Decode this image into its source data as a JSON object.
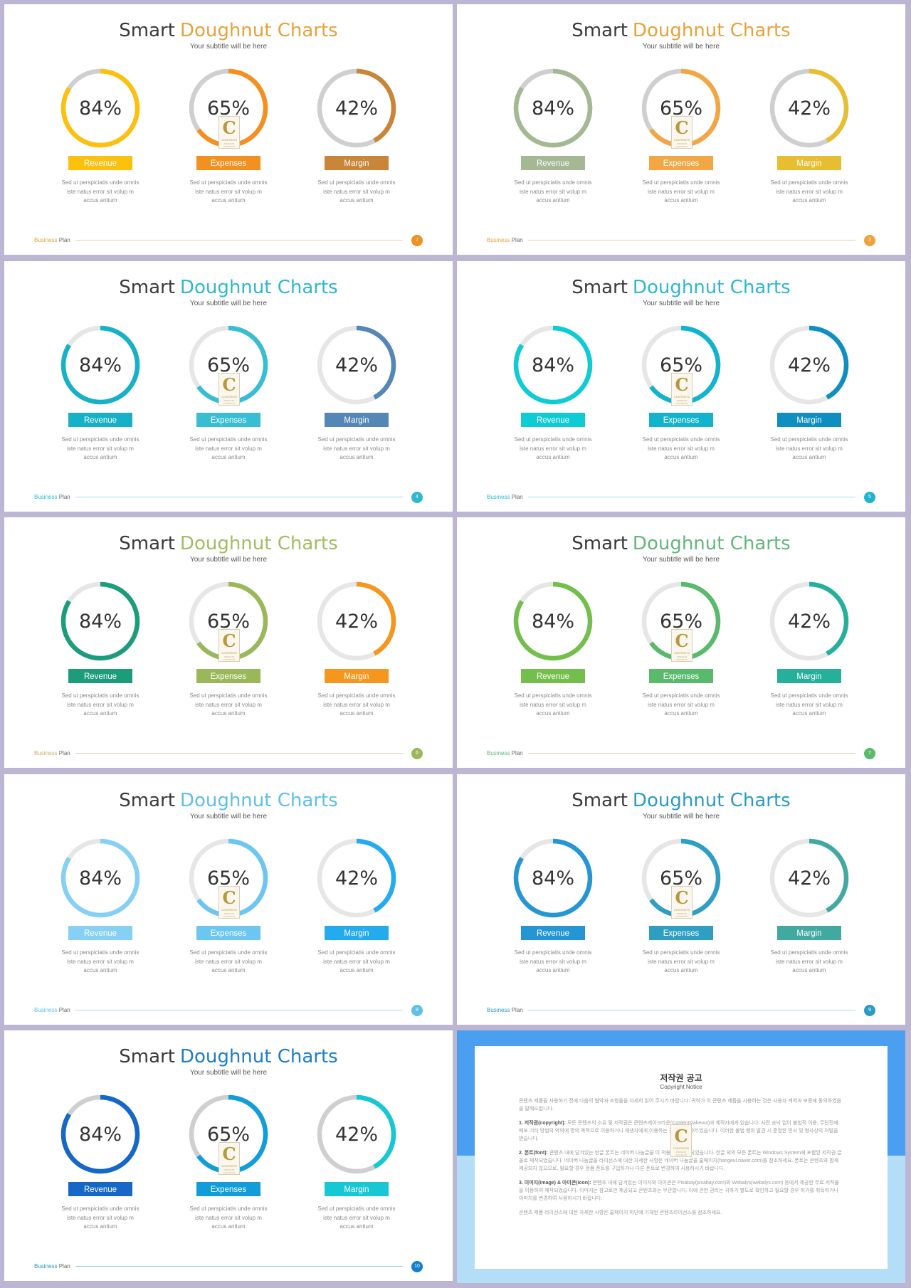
{
  "chart_data": [
    {
      "type": "pie",
      "title_lead": "Smart",
      "title_highlight": "Doughnut Charts",
      "subtitle": "Your subtitle will be here",
      "accent": "#e8a23a",
      "track": "#cfcfcf",
      "segments": [
        {
          "label": "Revenue",
          "value": 84,
          "display": "84%",
          "color": "#fcc10f"
        },
        {
          "label": "Expenses",
          "value": 65,
          "display": "65%",
          "color": "#f4901f"
        },
        {
          "label": "Margin",
          "value": 42,
          "display": "42%",
          "color": "#c98538"
        }
      ],
      "footer": {
        "brand_a": "Business",
        "brand_b": "Plan",
        "page": "2",
        "badge": "#f0901d",
        "line": "#e4d3a8",
        "brand_color": "#e8a23a"
      }
    },
    {
      "type": "pie",
      "title_lead": "Smart",
      "title_highlight": "Doughnut Charts",
      "subtitle": "Your subtitle will be here",
      "accent": "#e8a23a",
      "track": "#cfcfcf",
      "segments": [
        {
          "label": "Revenue",
          "value": 84,
          "display": "84%",
          "color": "#a3b893"
        },
        {
          "label": "Expenses",
          "value": 65,
          "display": "65%",
          "color": "#f2a744"
        },
        {
          "label": "Margin",
          "value": 42,
          "display": "42%",
          "color": "#e7bd31"
        }
      ],
      "footer": {
        "brand_a": "Business",
        "brand_b": "Plan",
        "page": "3",
        "badge": "#f0a23a",
        "line": "#e4d3a8",
        "brand_color": "#e8a23a"
      }
    },
    {
      "type": "pie",
      "title_lead": "Smart",
      "title_highlight": "Doughnut Charts",
      "subtitle": "Your subtitle will be here",
      "accent": "#2db8cf",
      "track": "#e6e6e6",
      "segments": [
        {
          "label": "Revenue",
          "value": 84,
          "display": "84%",
          "color": "#16b1c6"
        },
        {
          "label": "Expenses",
          "value": 65,
          "display": "65%",
          "color": "#39bdd2"
        },
        {
          "label": "Margin",
          "value": 42,
          "display": "42%",
          "color": "#5587b6"
        }
      ],
      "footer": {
        "brand_a": "Business",
        "brand_b": "Plan",
        "page": "4",
        "badge": "#2db8cf",
        "line": "#a9dbe6",
        "brand_color": "#2db8cf"
      }
    },
    {
      "type": "pie",
      "title_lead": "Smart",
      "title_highlight": "Doughnut Charts",
      "subtitle": "Your subtitle will be here",
      "accent": "#2db8cf",
      "track": "#e6e6e6",
      "segments": [
        {
          "label": "Revenue",
          "value": 84,
          "display": "84%",
          "color": "#0fcbd4"
        },
        {
          "label": "Expenses",
          "value": 65,
          "display": "65%",
          "color": "#12b3cc"
        },
        {
          "label": "Margin",
          "value": 42,
          "display": "42%",
          "color": "#0f8ec0"
        }
      ],
      "footer": {
        "brand_a": "Business",
        "brand_b": "Plan",
        "page": "5",
        "badge": "#1fb3cf",
        "line": "#a9dbe6",
        "brand_color": "#2db8cf"
      }
    },
    {
      "type": "pie",
      "title_lead": "Smart",
      "title_highlight": "Doughnut Charts",
      "subtitle": "Your subtitle will be here",
      "accent": "#a3bd62",
      "track": "#e6e6e6",
      "segments": [
        {
          "label": "Revenue",
          "value": 84,
          "display": "84%",
          "color": "#1d9c7c"
        },
        {
          "label": "Expenses",
          "value": 65,
          "display": "65%",
          "color": "#9ab85a"
        },
        {
          "label": "Margin",
          "value": 42,
          "display": "42%",
          "color": "#f5961f"
        }
      ],
      "footer": {
        "brand_a": "Business",
        "brand_b": "Plan",
        "page": "6",
        "badge": "#9ab85a",
        "line": "#dccfa8",
        "brand_color": "#c9b36a"
      }
    },
    {
      "type": "pie",
      "title_lead": "Smart",
      "title_highlight": "Doughnut Charts",
      "subtitle": "Your subtitle will be here",
      "accent": "#63b77b",
      "track": "#e6e6e6",
      "segments": [
        {
          "label": "Revenue",
          "value": 84,
          "display": "84%",
          "color": "#74bf4c"
        },
        {
          "label": "Expenses",
          "value": 65,
          "display": "65%",
          "color": "#5aba6c"
        },
        {
          "label": "Margin",
          "value": 42,
          "display": "42%",
          "color": "#24b09b"
        }
      ],
      "footer": {
        "brand_a": "Business",
        "brand_b": "Plan",
        "page": "7",
        "badge": "#5aba6c",
        "line": "#dccfa8",
        "brand_color": "#63b77b"
      }
    },
    {
      "type": "pie",
      "title_lead": "Smart",
      "title_highlight": "Doughnut Charts",
      "subtitle": "Your subtitle will be here",
      "accent": "#5dc0ea",
      "track": "#e6e6e6",
      "segments": [
        {
          "label": "Revenue",
          "value": 84,
          "display": "84%",
          "color": "#86d0f4"
        },
        {
          "label": "Expenses",
          "value": 65,
          "display": "65%",
          "color": "#6cc6f0"
        },
        {
          "label": "Margin",
          "value": 42,
          "display": "42%",
          "color": "#23abee"
        }
      ],
      "footer": {
        "brand_a": "Business",
        "brand_b": "Plan",
        "page": "8",
        "badge": "#5dc0ea",
        "line": "#a9dbe6",
        "brand_color": "#5dc0ea"
      }
    },
    {
      "type": "pie",
      "title_lead": "Smart",
      "title_highlight": "Doughnut Charts",
      "subtitle": "Your subtitle will be here",
      "accent": "#2b9bc4",
      "track": "#e6e6e6",
      "segments": [
        {
          "label": "Revenue",
          "value": 84,
          "display": "84%",
          "color": "#2596d3"
        },
        {
          "label": "Expenses",
          "value": 65,
          "display": "65%",
          "color": "#2e9fc3"
        },
        {
          "label": "Margin",
          "value": 42,
          "display": "42%",
          "color": "#41a9a0"
        }
      ],
      "footer": {
        "brand_a": "Business",
        "brand_b": "Plan",
        "page": "9",
        "badge": "#2b9bc4",
        "line": "#a9dbe6",
        "brand_color": "#2b9bc4"
      }
    },
    {
      "type": "pie",
      "title_lead": "Smart",
      "title_highlight": "Doughnut Charts",
      "subtitle": "Your subtitle will be here",
      "accent": "#1c7ec8",
      "track": "#cfcfcf",
      "segments": [
        {
          "label": "Revenue",
          "value": 84,
          "display": "84%",
          "color": "#1568c5"
        },
        {
          "label": "Expenses",
          "value": 65,
          "display": "65%",
          "color": "#109dd8"
        },
        {
          "label": "Margin",
          "value": 42,
          "display": "42%",
          "color": "#17c7d3"
        }
      ],
      "footer": {
        "brand_a": "Business",
        "brand_b": "Plan",
        "page": "10",
        "badge": "#137ed0",
        "line": "#8fc6ea",
        "brand_color": "#2b9bc4"
      }
    }
  ],
  "description_lines": [
    "Sed ut perspiciatis unde omnis",
    "iste natus error sit volup m",
    "accus antium"
  ],
  "logo": {
    "letter": "C",
    "name": "CONTENTS",
    "tag": "PREMIUM CONTENTS"
  },
  "copyright": {
    "title": "저작권 공고",
    "subtitle": "Copyright Notice",
    "intro": "콘텐츠 제품을 사용하기 전에 다음의 협약과 조항들을 자세히 읽어 주시기 바랍니다. 귀하가 이 콘텐츠 제품을 사용하는 것은 사용자 계약과 보증에 동의하였음을 말해드립니다.",
    "s1_head": "1. 저작권(copyright):",
    "s1_body": "모든 콘텐츠의 소유 및 저작권은 콘텐츠레이크라운(Contentslakeout)과 제작자에게 있습니다. 사전 승낙 없이 불법적 이용, 무단전재, 배포 기타 방법의 악의에 명의 목적으로 이용하거나 재생자에게 이용하는 것은 금지되어 있습니다. 이러한 불법 행위 발견 시 준엄한 민사 및 형사상의 처벌을 받습니다.",
    "s2_head": "2. 폰트(font):",
    "s2_body": "콘텐츠 내에 담겨있는 한글 폰트는 네이버 나눔글꼴 이 적용되어 제작되었습니다. 한글 외의 모든 폰트는 Windows System에 포함된 저작권 글꼴로 제작되었습니다. 네이버 나눔글꼴 라이선스에 대한 자세한 사항은 네이버 나눔글꼴 홈페이지(hangeul.naver.com)를 참조하세요. 폰트는 콘텐츠와 함께 제공되지 않으므로, 필요할 경우 정품 폰트를 구입하거나 다른 폰트로 변경하여 사용하시기 바랍니다.",
    "s3_head": "3. 이미지(image) & 아이콘(icon):",
    "s3_body": "콘텐츠 내에 담겨있는 이미지와 아이콘은 Pixabay(pixabay.com)와 Webalys(webalys.com) 등에서 제공한 무료 저작물을 이용하여 제작되었습니다. 이미지는 참고로만 제공되고 콘텐츠와는 무관합니다. 이에 관한 권리는 귀하가 별도로 확인하고 필요할 경우 허가를 취득하거나 이미지를 변경하여 사용하시기 바랍니다.",
    "outro": "콘텐츠 제품 라이선스에 대한 자세한 사항은 홈페이지 하단에 기재된 콘텐츠라이선스를 참조하세요."
  }
}
